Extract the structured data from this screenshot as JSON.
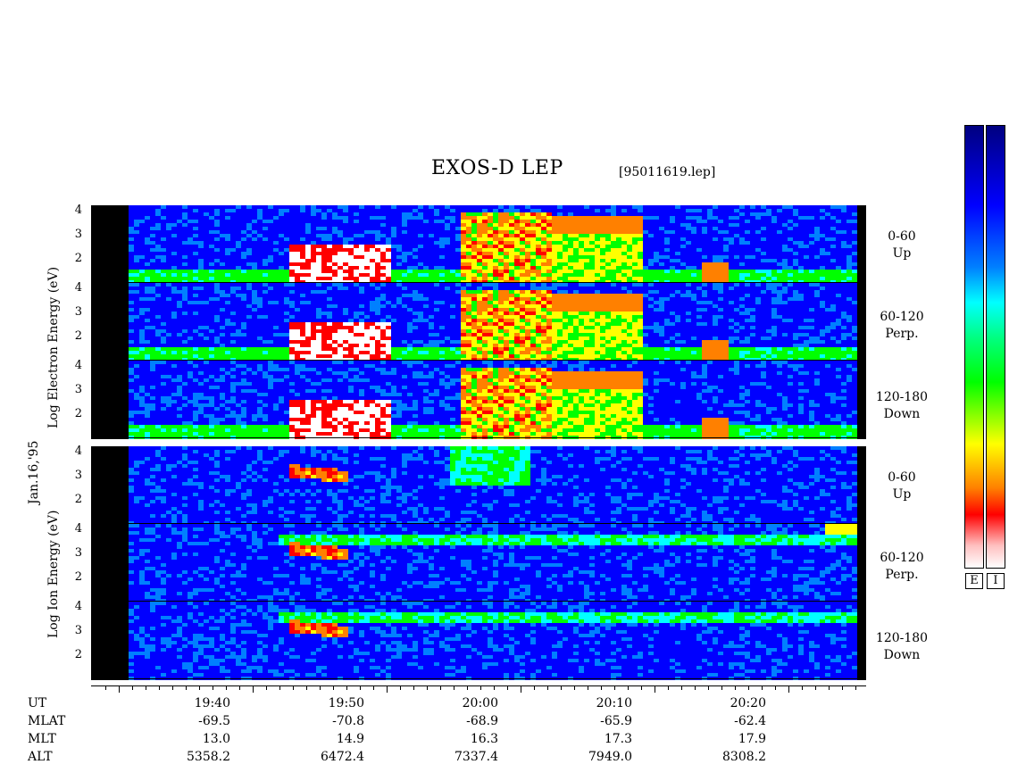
{
  "header": {
    "title": "EXOS-D LEP",
    "subtitle": "[95011619.lep]"
  },
  "side_labels": {
    "electron": "Log   Electron   Energy (eV)",
    "ion": "Log   Ion   Energy (eV)",
    "date": "Jan.16,'95"
  },
  "bands": [
    {
      "line1": "0-60",
      "line2": "Up"
    },
    {
      "line1": "60-120",
      "line2": "Perp."
    },
    {
      "line1": "120-180",
      "line2": "Down"
    }
  ],
  "yticks": [
    "4",
    "3",
    "2",
    ""
  ],
  "colorbar": {
    "labels": [
      "E",
      "I"
    ]
  },
  "chart_data": {
    "type": "heatmap",
    "title": "EXOS-D LEP",
    "file": "[95011619.lep]",
    "x_axis": {
      "labels": [
        "19:40",
        "19:50",
        "20:00",
        "20:10",
        "20:20"
      ]
    },
    "y_axis": {
      "ticks": [
        4,
        3,
        2
      ]
    },
    "panels": [
      {
        "species": "Electron",
        "band": "0-60 Up"
      },
      {
        "species": "Electron",
        "band": "60-120 Perp."
      },
      {
        "species": "Electron",
        "band": "120-180 Down"
      },
      {
        "species": "Ion",
        "band": "0-60 Up"
      },
      {
        "species": "Ion",
        "band": "60-120 Perp."
      },
      {
        "species": "Ion",
        "band": "120-180 Down"
      }
    ],
    "colors": [
      "#ffffff",
      "#ff0000",
      "#ff8000",
      "#ffff00",
      "#00ff00",
      "#00ffff",
      "#0080ff",
      "#0000ff",
      "#000080"
    ],
    "ephemeris": [
      {
        "name": "UT",
        "values": [
          "",
          "",
          "",
          "",
          ""
        ]
      },
      {
        "name": "MLAT",
        "values": [
          "-69.5",
          "-70.8",
          "-68.9",
          "-65.9",
          "-62.4"
        ]
      },
      {
        "name": "MLT",
        "values": [
          "13.0",
          "14.9",
          "16.3",
          "17.3",
          "17.9"
        ]
      },
      {
        "name": "ALT",
        "values": [
          "5358.2",
          "6472.4",
          "7337.4",
          "7949.0",
          "8308.2"
        ]
      }
    ]
  }
}
